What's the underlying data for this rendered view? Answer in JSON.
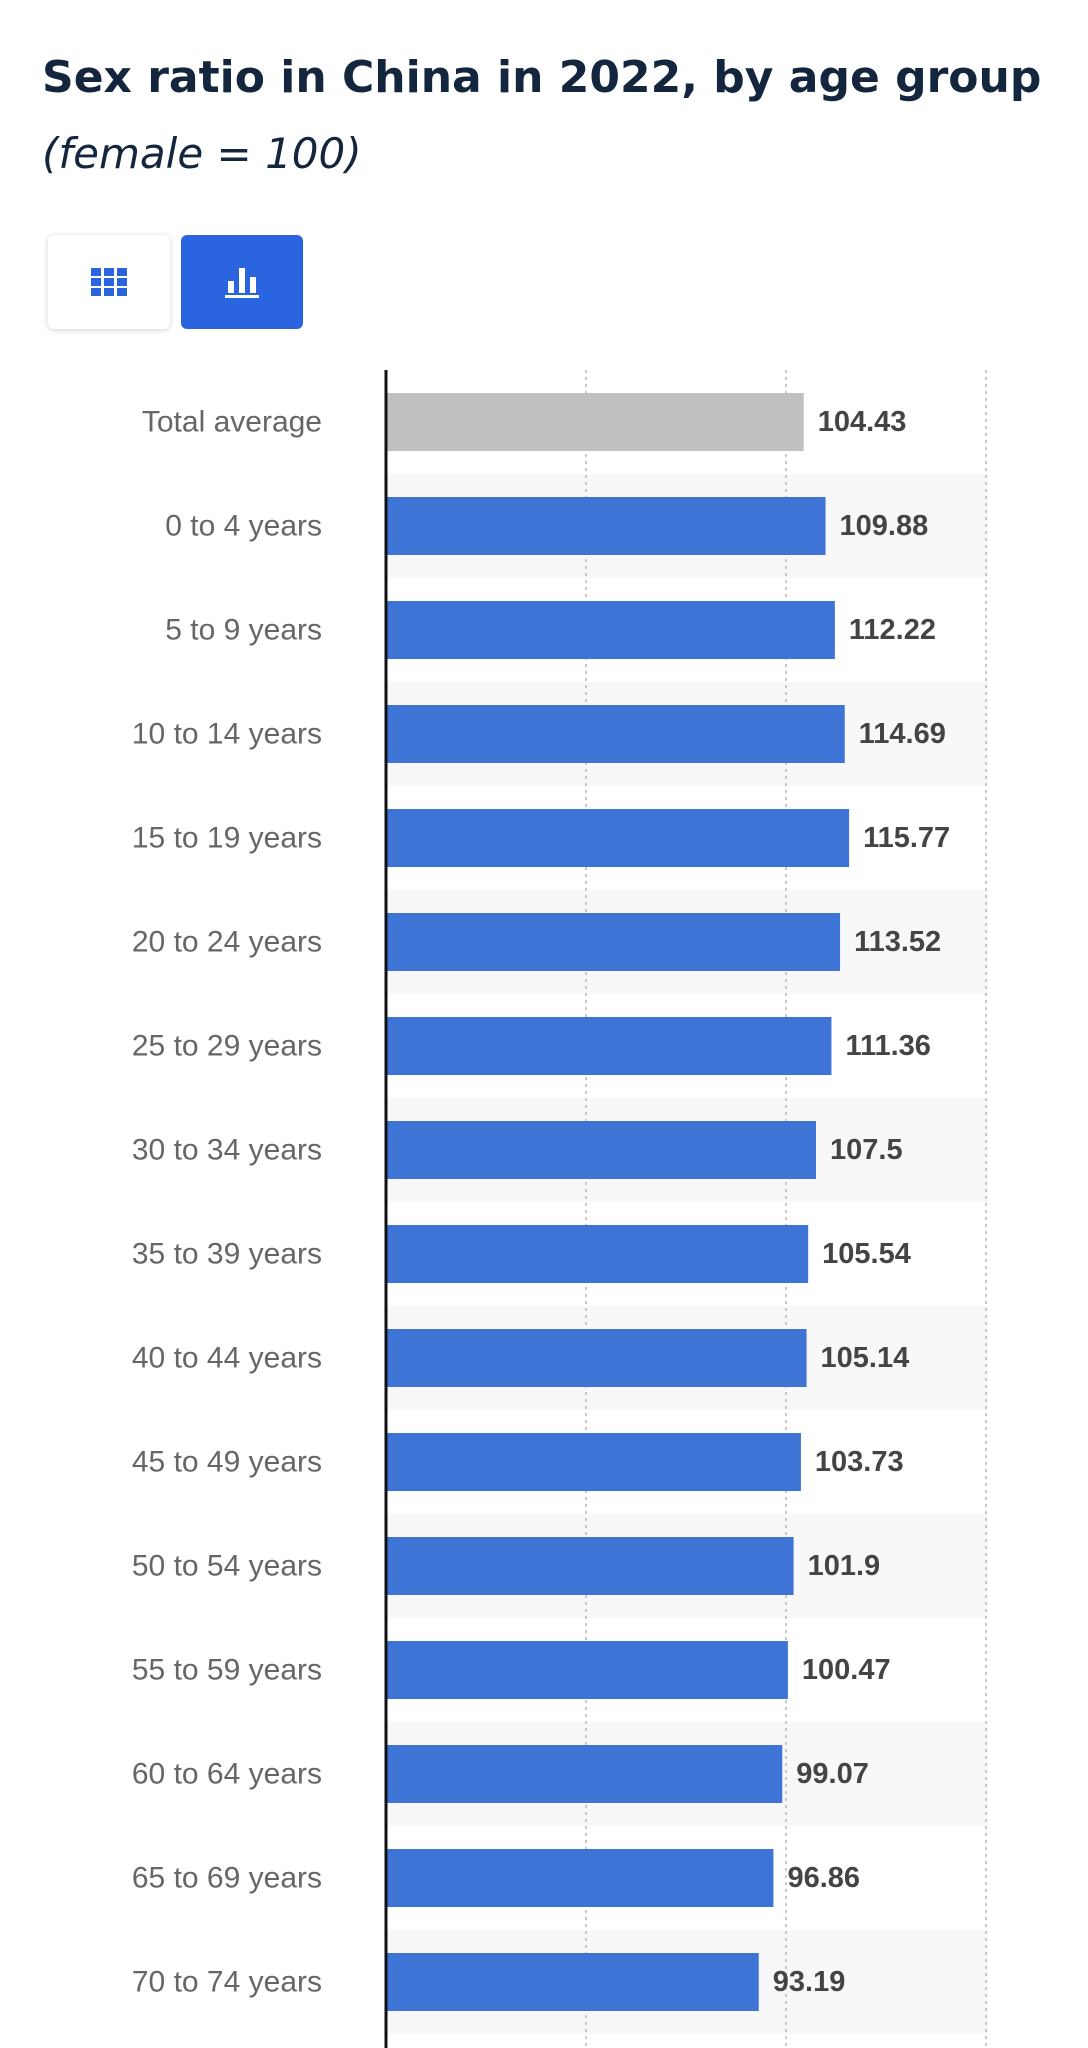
{
  "title": "Sex ratio in China in 2022, by age group",
  "subtitle": "(female = 100)",
  "toolbar": {
    "table_view_icon": "grid-icon",
    "chart_view_icon": "bar-chart-icon",
    "active_view": "chart"
  },
  "colors": {
    "bar": "#3d74d6",
    "highlight_bar": "#c0c0c0",
    "category_label": "#666666",
    "value_label": "#444444",
    "toggle_active": "#2b64df",
    "title": "#13263d"
  },
  "chart_data": {
    "type": "bar",
    "orientation": "horizontal",
    "title": "Sex ratio in China in 2022, by age group",
    "subtitle": "(female = 100)",
    "xlabel": "",
    "ylabel": "",
    "xlim": [
      0,
      150
    ],
    "grid": true,
    "tick_labels_visible": false,
    "categories": [
      "Total average",
      "0 to 4 years",
      "5 to 9 years",
      "10 to 14 years",
      "15 to 19 years",
      "20 to 24 years",
      "25 to 29 years",
      "30 to 34 years",
      "35 to 39 years",
      "40 to 44 years",
      "45 to 49 years",
      "50 to 54 years",
      "55 to 59 years",
      "60 to 64 years",
      "65 to 69 years",
      "70 to 74 years"
    ],
    "values": [
      104.43,
      109.88,
      112.22,
      114.69,
      115.77,
      113.52,
      111.36,
      107.5,
      105.54,
      105.14,
      103.73,
      101.9,
      100.47,
      99.07,
      96.86,
      93.19
    ],
    "value_labels": [
      "104.43",
      "109.88",
      "112.22",
      "114.69",
      "115.77",
      "113.52",
      "111.36",
      "107.5",
      "105.54",
      "105.14",
      "103.73",
      "101.9",
      "100.47",
      "99.07",
      "96.86",
      "93.19"
    ],
    "highlighted_category": "Total average"
  }
}
